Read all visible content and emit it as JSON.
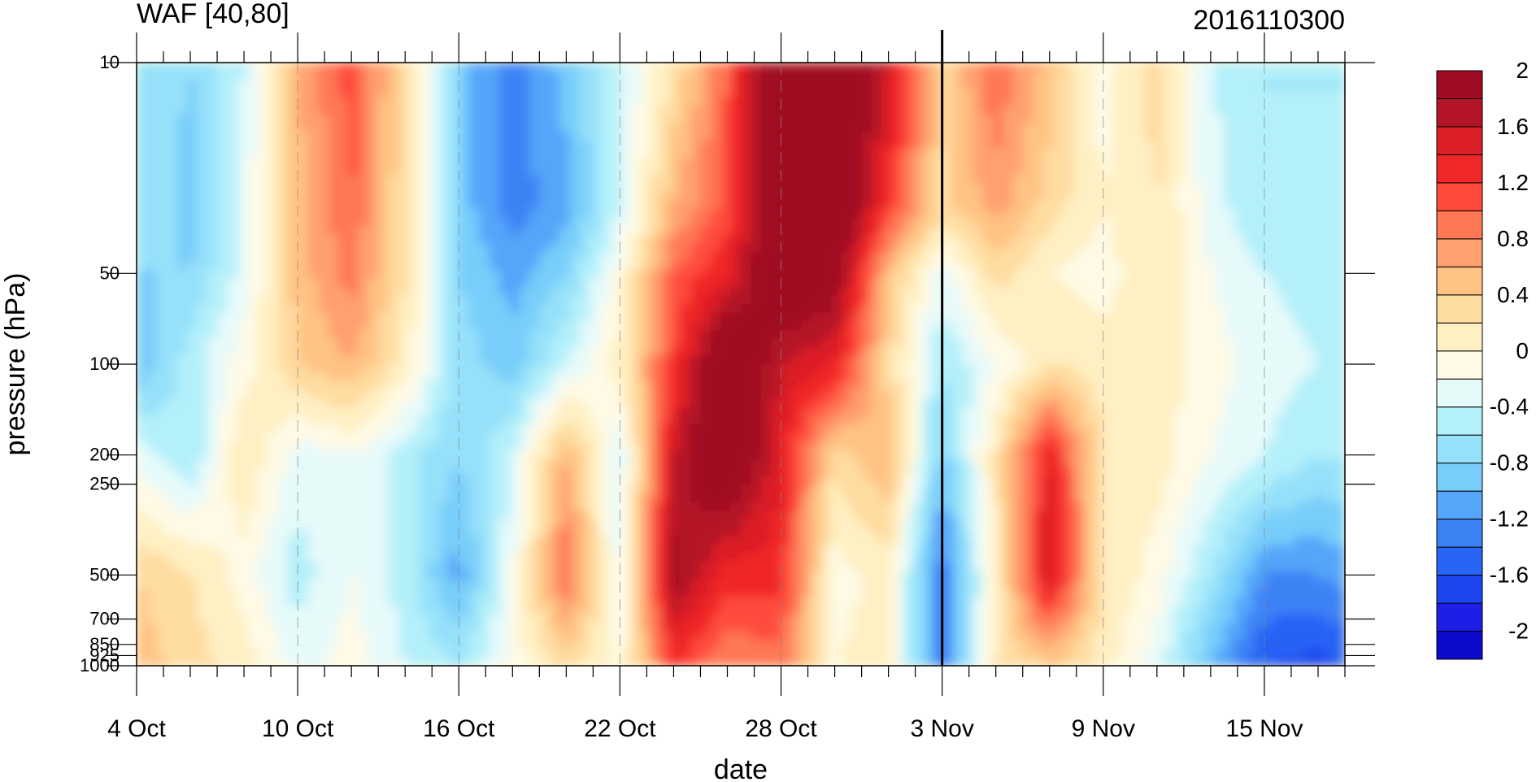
{
  "chart_data": {
    "type": "heatmap",
    "title": "WAF [40,80]",
    "right_title": "2016110300",
    "xlabel": "date",
    "ylabel": "pressure (hPa)",
    "y_scale": "log",
    "ylim": [
      1000,
      10
    ],
    "xlim": [
      "2016-10-04",
      "2016-11-18"
    ],
    "x_tick_labels": [
      "4 Oct",
      "10 Oct",
      "16 Oct",
      "22 Oct",
      "28 Oct",
      "3 Nov",
      "9 Nov",
      "15 Nov"
    ],
    "x_tick_dates": [
      "2016-10-04",
      "2016-10-10",
      "2016-10-16",
      "2016-10-22",
      "2016-10-28",
      "2016-11-03",
      "2016-11-09",
      "2016-11-15"
    ],
    "y_tick_labels": [
      "10",
      "50",
      "100",
      "200",
      "250",
      "500",
      "700",
      "850",
      "925",
      "1000"
    ],
    "y_tick_values": [
      10,
      50,
      100,
      200,
      250,
      500,
      700,
      850,
      925,
      1000
    ],
    "marker_date": "2016-11-03",
    "colorbar": {
      "labels": [
        "2",
        "1.6",
        "1.2",
        "0.8",
        "0.4",
        "0",
        "-0.4",
        "-0.8",
        "-1.2",
        "-1.6",
        "-2"
      ],
      "levels": [
        -2.2,
        -2,
        -1.8,
        -1.6,
        -1.4,
        -1.2,
        -1,
        -0.8,
        -0.6,
        -0.4,
        -0.2,
        0,
        0.2,
        0.4,
        0.6,
        0.8,
        1,
        1.2,
        1.4,
        1.6,
        1.8,
        2,
        2.2
      ],
      "colors": [
        "#0a0ac8",
        "#1e1ee6",
        "#1e46f0",
        "#2864f5",
        "#3c82f5",
        "#55a5fa",
        "#78cdfa",
        "#96e1fa",
        "#b4f0fa",
        "#e6fafa",
        "#fffae6",
        "#fff0c3",
        "#ffdca0",
        "#ffc383",
        "#ffa06e",
        "#ff7855",
        "#ff4b3c",
        "#f02828",
        "#dc1e28",
        "#b41428",
        "#a00a23"
      ]
    },
    "x": [
      "2016-10-04",
      "2016-10-06",
      "2016-10-08",
      "2016-10-10",
      "2016-10-12",
      "2016-10-14",
      "2016-10-16",
      "2016-10-18",
      "2016-10-20",
      "2016-10-22",
      "2016-10-24",
      "2016-10-26",
      "2016-10-28",
      "2016-10-30",
      "2016-11-01",
      "2016-11-03",
      "2016-11-05",
      "2016-11-07",
      "2016-11-09",
      "2016-11-11",
      "2016-11-13",
      "2016-11-15",
      "2016-11-17",
      "2016-11-18"
    ],
    "y": [
      10,
      30,
      50,
      100,
      200,
      500,
      1000
    ],
    "z": [
      [
        -0.6,
        -0.8,
        -0.4,
        0.6,
        1.1,
        0.3,
        -0.9,
        -1.3,
        -0.9,
        -0.4,
        0.2,
        1.0,
        2.3,
        2.4,
        1.6,
        0.3,
        1.0,
        0.5,
        -0.1,
        0.3,
        -0.4,
        -0.6,
        -0.6,
        -0.6
      ],
      [
        -0.6,
        -0.9,
        -0.3,
        0.5,
        1.0,
        0.2,
        -0.9,
        -1.3,
        -1.1,
        -0.4,
        0.6,
        1.1,
        2.3,
        2.3,
        1.2,
        0.3,
        0.7,
        0.3,
        0.0,
        0.2,
        -0.3,
        -0.6,
        -0.6,
        -0.6
      ],
      [
        -0.8,
        -0.8,
        -0.3,
        0.5,
        0.9,
        0.2,
        -0.8,
        -1.1,
        -0.8,
        -0.1,
        1.0,
        1.4,
        2.2,
        2.0,
        0.5,
        -0.3,
        0.3,
        0.0,
        -0.1,
        0.2,
        -0.2,
        -0.4,
        -0.5,
        -0.5
      ],
      [
        -1.0,
        -0.5,
        -0.1,
        0.4,
        0.6,
        0.1,
        -0.7,
        -0.9,
        -0.4,
        0.1,
        1.2,
        2.3,
        1.6,
        1.4,
        0.3,
        -0.6,
        -0.2,
        0.2,
        0.1,
        0.1,
        -0.1,
        -0.3,
        -0.4,
        -0.4
      ],
      [
        -0.3,
        -0.6,
        0.2,
        -0.3,
        -0.2,
        -0.5,
        -0.8,
        -0.4,
        0.6,
        -0.4,
        1.6,
        2.3,
        1.4,
        0.3,
        0.6,
        -0.9,
        0.2,
        1.4,
        0.2,
        0.1,
        -0.2,
        -0.4,
        -0.6,
        -0.6
      ],
      [
        0.4,
        0.2,
        -0.1,
        -0.5,
        -0.2,
        -0.5,
        -1.1,
        -0.2,
        1.0,
        -0.3,
        1.9,
        1.3,
        1.3,
        -0.1,
        0.1,
        -1.4,
        0.1,
        1.6,
        0.2,
        -0.1,
        -0.6,
        -1.2,
        -1.2,
        -1.1
      ],
      [
        0.5,
        0.3,
        0.1,
        -0.3,
        -0.1,
        -0.4,
        -0.6,
        -0.1,
        0.3,
        -0.1,
        1.2,
        0.8,
        0.9,
        0.0,
        0.1,
        -1.4,
        0.2,
        0.4,
        0.1,
        -0.3,
        -1.0,
        -1.6,
        -1.7,
        -1.6
      ]
    ]
  }
}
